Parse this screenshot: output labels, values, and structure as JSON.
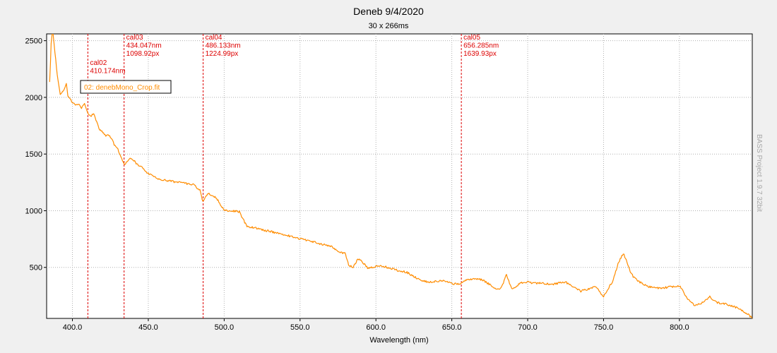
{
  "chart_data": {
    "type": "line",
    "title": "Deneb 9/4/2020",
    "subtitle": "30 x 266ms",
    "xlabel": "Wavelength (nm)",
    "ylabel": "",
    "xlim": [
      383,
      848
    ],
    "ylim": [
      50,
      2560
    ],
    "x_ticks": [
      400,
      450,
      500,
      550,
      600,
      650,
      700,
      750,
      800
    ],
    "x_tick_labels": [
      "400.0",
      "450.0",
      "500.0",
      "550.0",
      "600.0",
      "650.0",
      "700.0",
      "750.0",
      "800.0"
    ],
    "y_ticks": [
      500,
      1000,
      1500,
      2000,
      2500
    ],
    "y_tick_labels": [
      "500",
      "1000",
      "1500",
      "2000",
      "2500"
    ],
    "grid": true,
    "legend": {
      "placement": "top-left",
      "label": "02: denebMono_Crop.fit"
    },
    "series": [
      {
        "name": "02: denebMono_Crop.fit",
        "color": "#ff8c00",
        "x": [
          385,
          386,
          387,
          388,
          390,
          392,
          394,
          396,
          397,
          398,
          400,
          402,
          404,
          406,
          408,
          410,
          412,
          414,
          416,
          418,
          420,
          422,
          424,
          426,
          428,
          430,
          432,
          434,
          436,
          438,
          440,
          442,
          444,
          446,
          448,
          450,
          455,
          460,
          465,
          470,
          475,
          480,
          484,
          486,
          488,
          490,
          495,
          500,
          505,
          510,
          515,
          520,
          525,
          530,
          535,
          540,
          545,
          550,
          555,
          560,
          565,
          570,
          575,
          580,
          582,
          585,
          588,
          590,
          595,
          600,
          605,
          610,
          615,
          620,
          625,
          630,
          635,
          640,
          645,
          650,
          655,
          660,
          665,
          670,
          675,
          680,
          683,
          686,
          688,
          690,
          695,
          700,
          705,
          710,
          715,
          720,
          725,
          730,
          735,
          740,
          745,
          750,
          753,
          756,
          760,
          763,
          765,
          768,
          770,
          775,
          780,
          785,
          790,
          795,
          800,
          805,
          810,
          815,
          820,
          825,
          830,
          835,
          840,
          845,
          848
        ],
        "y": [
          2130,
          2480,
          2600,
          2460,
          2200,
          2030,
          2060,
          2120,
          2010,
          1990,
          1960,
          1930,
          1940,
          1910,
          1940,
          1870,
          1830,
          1860,
          1780,
          1710,
          1690,
          1660,
          1670,
          1630,
          1570,
          1540,
          1480,
          1410,
          1430,
          1460,
          1450,
          1420,
          1390,
          1380,
          1350,
          1330,
          1290,
          1270,
          1260,
          1250,
          1240,
          1230,
          1180,
          1080,
          1130,
          1150,
          1110,
          1000,
          1000,
          990,
          860,
          850,
          830,
          820,
          800,
          790,
          770,
          750,
          740,
          720,
          700,
          690,
          640,
          620,
          520,
          500,
          570,
          560,
          490,
          510,
          510,
          490,
          470,
          460,
          420,
          380,
          370,
          380,
          380,
          360,
          350,
          390,
          400,
          390,
          350,
          300,
          330,
          440,
          360,
          310,
          360,
          370,
          360,
          360,
          350,
          360,
          370,
          330,
          290,
          310,
          330,
          240,
          310,
          380,
          550,
          620,
          570,
          450,
          410,
          360,
          330,
          320,
          320,
          330,
          340,
          230,
          160,
          190,
          240,
          190,
          180,
          160,
          130,
          90,
          50
        ]
      }
    ],
    "markers": [
      {
        "name": "cal02",
        "x": 410.174,
        "lines": [
          "cal02",
          "410.174nm"
        ]
      },
      {
        "name": "cal03",
        "x": 434.047,
        "lines": [
          "cal03",
          "434.047nm",
          "1098.92px"
        ]
      },
      {
        "name": "cal04",
        "x": 486.133,
        "lines": [
          "cal04",
          "486.133nm",
          "1224.99px"
        ]
      },
      {
        "name": "cal05",
        "x": 656.285,
        "lines": [
          "cal05",
          "656.285nm",
          "1639.93px"
        ]
      }
    ],
    "watermark": "BASS Project 1.9.7 32bit",
    "colors": {
      "series": "#ff8c00",
      "marker": "#dd0000",
      "grid": "#b0b0b0",
      "background": "#ffffff",
      "page": "#f0f0f0"
    }
  }
}
